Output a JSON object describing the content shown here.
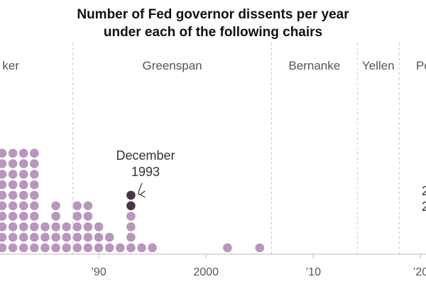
{
  "chart_data": {
    "type": "dot-plot",
    "title": "Number of Fed governor dissents per year",
    "subtitle": "under each of the following chairs",
    "xlabel": "",
    "ylabel": "",
    "xlim": [
      1980.8,
      2020.5
    ],
    "chairs": [
      {
        "name": "Volcker",
        "visible_label": "ker",
        "start": 1979.6,
        "end": 1987.6
      },
      {
        "name": "Greenspan",
        "visible_label": "Greenspan",
        "start": 1987.6,
        "end": 2006.1
      },
      {
        "name": "Bernanke",
        "visible_label": "Bernanke",
        "start": 2006.1,
        "end": 2014.1
      },
      {
        "name": "Yellen",
        "visible_label": "Yellen",
        "start": 2014.1,
        "end": 2018.0
      },
      {
        "name": "Powell",
        "visible_label": "Po",
        "start": 2018.0,
        "end": 2021.0
      }
    ],
    "boundaries": [
      1987.6,
      2006.1,
      2014.1,
      2018.0
    ],
    "x_ticks": [
      {
        "value": 1990,
        "label": "’90"
      },
      {
        "value": 2000,
        "label": "2000"
      },
      {
        "value": 2010,
        "label": "’10"
      },
      {
        "value": 2020,
        "label": "’20"
      }
    ],
    "series": [
      {
        "name": "Dissents",
        "years": [
          1981,
          1982,
          1983,
          1984,
          1985,
          1986,
          1987,
          1988,
          1989,
          1990,
          1991,
          1992,
          1993,
          1994,
          1995,
          2002,
          2005
        ],
        "values": [
          10,
          10,
          10,
          10,
          3,
          5,
          3,
          5,
          5,
          3,
          2,
          1,
          6,
          1,
          1,
          1,
          1
        ]
      }
    ],
    "highlight": {
      "year": 1993,
      "count": 2,
      "label_line1": "December",
      "label_line2": "1993"
    },
    "edge_labels": [
      "2",
      "2"
    ],
    "colors": {
      "dot": "#b797bb",
      "highlight": "#4a3545",
      "grid": "#cccccc",
      "axis": "#bbbbbb",
      "text": "#555555"
    }
  }
}
